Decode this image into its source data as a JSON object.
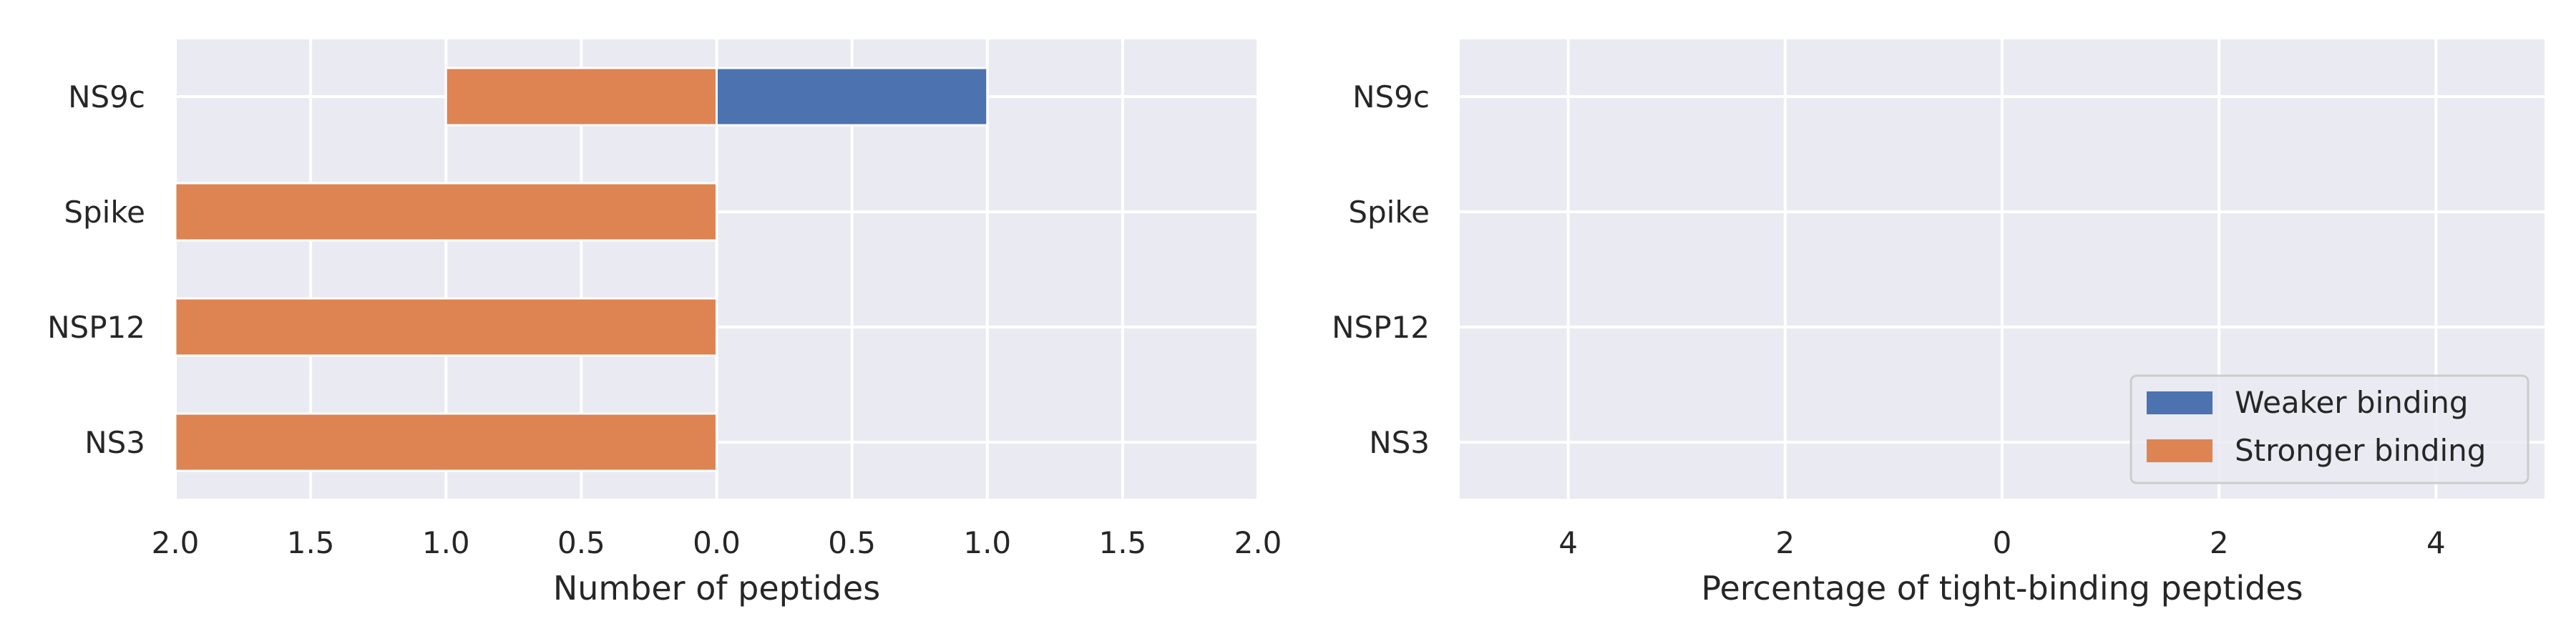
{
  "chart_data": [
    {
      "type": "bar",
      "orientation": "horizontal",
      "diverging": true,
      "categories": [
        "NS9c",
        "Spike",
        "NSP12",
        "NS3"
      ],
      "series": [
        {
          "name": "Weaker binding",
          "direction": "right",
          "color": "#4c72b0",
          "values": [
            1,
            0,
            0,
            0
          ]
        },
        {
          "name": "Stronger binding",
          "direction": "left",
          "color": "#dd8452",
          "values": [
            1,
            2,
            2,
            2
          ]
        }
      ],
      "xlim": [
        -2,
        2
      ],
      "xticks": [
        -2,
        -1.5,
        -1,
        -0.5,
        0,
        0.5,
        1,
        1.5,
        2
      ],
      "xtick_labels": [
        "2.0",
        "1.5",
        "1.0",
        "0.5",
        "0.0",
        "0.5",
        "1.0",
        "1.5",
        "2.0"
      ],
      "xlabel": "Number of peptides",
      "ylabel": "",
      "grid": true,
      "legend": false
    },
    {
      "type": "bar",
      "orientation": "horizontal",
      "diverging": true,
      "categories": [
        "NS9c",
        "Spike",
        "NSP12",
        "NS3"
      ],
      "series": [
        {
          "name": "Weaker binding",
          "direction": "right",
          "color": "#4c72b0",
          "values": [
            0,
            0,
            0,
            0
          ]
        },
        {
          "name": "Stronger binding",
          "direction": "left",
          "color": "#dd8452",
          "values": [
            0,
            0,
            0,
            0
          ]
        }
      ],
      "xlim": [
        -5,
        5
      ],
      "xticks": [
        -4,
        -2,
        0,
        2,
        4
      ],
      "xtick_labels": [
        "4",
        "2",
        "0",
        "2",
        "4"
      ],
      "xlabel": "Percentage of tight-binding peptides",
      "ylabel": "",
      "grid": true,
      "legend": true,
      "legend_position": "lower-right",
      "legend_entries": [
        "Weaker binding",
        "Stronger binding"
      ]
    }
  ]
}
